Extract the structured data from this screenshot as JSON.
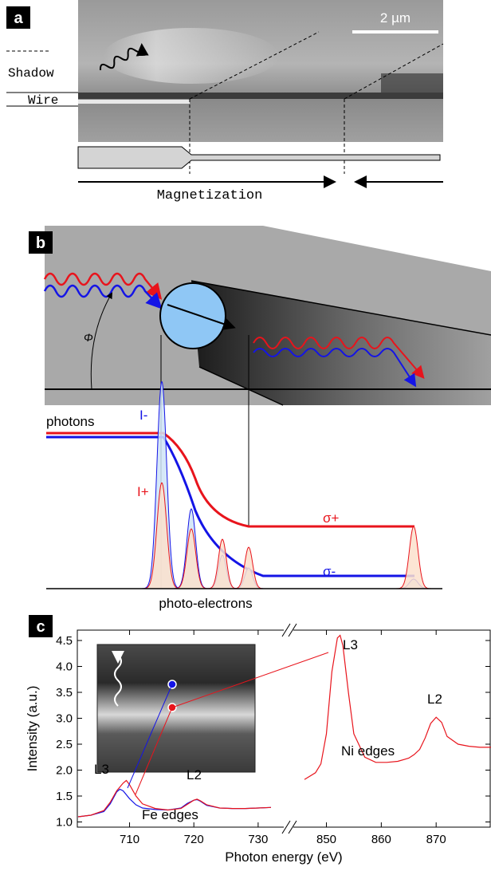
{
  "panels": {
    "a": {
      "letter": "a",
      "scalebar": "2 µm",
      "shadow_label": "Shadow",
      "wire_label": "Wire",
      "magnetization_label": "Magnetization"
    },
    "b": {
      "letter": "b",
      "angle_label": "Φ",
      "photons_label": "photons",
      "photoelectrons_label": "photo-electrons",
      "i_minus": "I-",
      "i_plus": "I+",
      "sigma_plus": "σ+",
      "sigma_minus": "σ-"
    },
    "c": {
      "letter": "c",
      "fe_l3": "L3",
      "fe_l2": "L2",
      "fe_edges": "Fe edges",
      "ni_l3": "L3",
      "ni_l2": "L2",
      "ni_edges": "Ni edges"
    }
  },
  "colors": {
    "red": "#e8141c",
    "blue": "#1414e6",
    "circle_fill": "#8fc7f5",
    "pos_fill": "#fbe0cc",
    "neg_fill": "#cfe4f7",
    "bg_gray": "#a9a9a9"
  },
  "chart_data": {
    "type": "line",
    "xlabel": "Photon energy (eV)",
    "ylabel": "Intensity (a.u.)",
    "ylim": [
      0.9,
      4.7
    ],
    "xticks_left": [
      710,
      720,
      730
    ],
    "xticks_right": [
      850,
      860,
      870
    ],
    "yticks": [
      1.0,
      1.5,
      2.0,
      2.5,
      3.0,
      3.5,
      4.0,
      4.5
    ],
    "axis_break": true,
    "series": [
      {
        "color": "#1414e6",
        "x": [
          702,
          704,
          706,
          707,
          708,
          708.5,
          709,
          710,
          711,
          712,
          714,
          716,
          718,
          719,
          720,
          720.5,
          721,
          722,
          724,
          726,
          728,
          730,
          732
        ],
        "y": [
          1.1,
          1.13,
          1.2,
          1.35,
          1.58,
          1.63,
          1.6,
          1.45,
          1.33,
          1.27,
          1.24,
          1.23,
          1.27,
          1.36,
          1.42,
          1.43,
          1.4,
          1.32,
          1.27,
          1.26,
          1.26,
          1.27,
          1.28
        ]
      },
      {
        "color": "#e8141c",
        "x": [
          702,
          704,
          706,
          707,
          708,
          709,
          709.5,
          710,
          711,
          712,
          714,
          716,
          718,
          719,
          720,
          720.5,
          721,
          722,
          724,
          726,
          728,
          730,
          732
        ],
        "y": [
          1.1,
          1.13,
          1.22,
          1.38,
          1.6,
          1.75,
          1.8,
          1.72,
          1.5,
          1.35,
          1.26,
          1.23,
          1.26,
          1.34,
          1.42,
          1.44,
          1.41,
          1.33,
          1.27,
          1.26,
          1.26,
          1.27,
          1.28
        ]
      },
      {
        "color": "#e8141c",
        "x": [
          846,
          848,
          849,
          850,
          851,
          852,
          852.5,
          853,
          854,
          855,
          857,
          859,
          861,
          863,
          865,
          866,
          867,
          868,
          869,
          870,
          871,
          872,
          874,
          876,
          878,
          880
        ],
        "y": [
          1.82,
          1.95,
          2.12,
          2.7,
          3.9,
          4.55,
          4.6,
          4.4,
          3.5,
          2.7,
          2.25,
          2.15,
          2.15,
          2.17,
          2.23,
          2.3,
          2.4,
          2.62,
          2.9,
          3.02,
          2.92,
          2.65,
          2.5,
          2.46,
          2.44,
          2.44
        ]
      }
    ]
  }
}
